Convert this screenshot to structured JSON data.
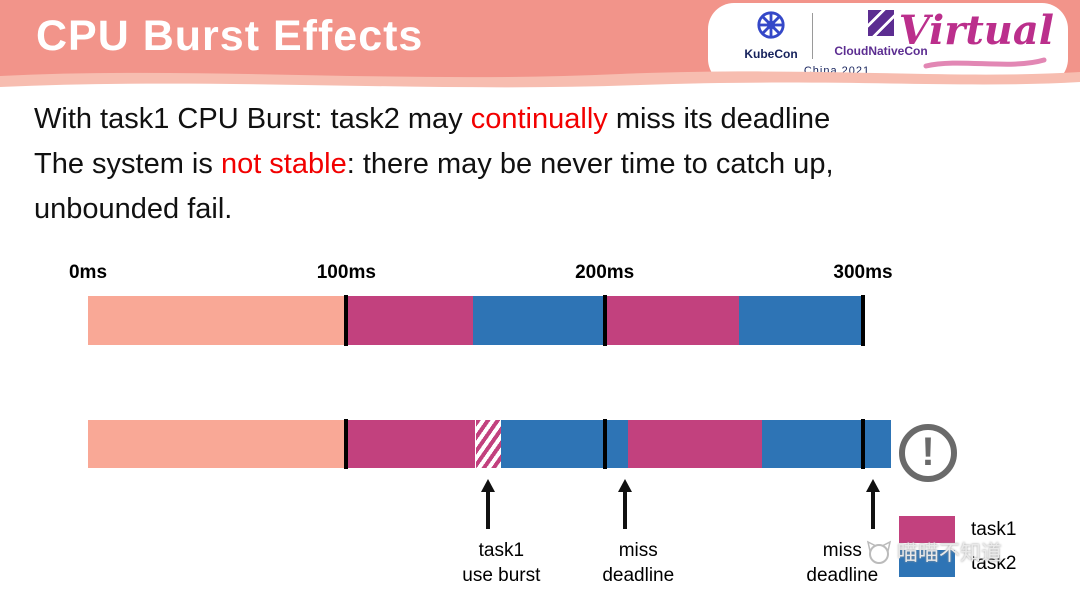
{
  "header": {
    "title": "CPU Burst Effects",
    "kubecon_label": "KubeCon",
    "cloudnativecon_label": "CloudNativeCon",
    "event_label": "China 2021",
    "virtual_label": "Virtual"
  },
  "body": {
    "line1_pre": "With task1 CPU Burst: task2 may ",
    "line1_highlight": "continually",
    "line1_post": " miss its deadline",
    "line2_pre": "The system is ",
    "line2_highlight": "not stable",
    "line2_post": ": there may be never time to catch up,",
    "line3": "unbounded fail."
  },
  "watermark": {
    "text": "喵喵不知道"
  },
  "chart_data": {
    "type": "timeline",
    "unit": "ms",
    "axis_ticks": [
      {
        "label": "0ms",
        "ms": 0
      },
      {
        "label": "100ms",
        "ms": 100
      },
      {
        "label": "200ms",
        "ms": 200
      },
      {
        "label": "300ms",
        "ms": 300
      }
    ],
    "total_ms": 312,
    "colors": {
      "idle": "#f9a896",
      "task1": "#c2417e",
      "task2": "#2e74b5",
      "tick": "#000000"
    },
    "bars": [
      {
        "name": "without-burst",
        "segments": [
          {
            "start": 0,
            "end": 100,
            "kind": "idle"
          },
          {
            "start": 100,
            "end": 149,
            "kind": "task1"
          },
          {
            "start": 149,
            "end": 200,
            "kind": "task2"
          },
          {
            "start": 200,
            "end": 252,
            "kind": "task1"
          },
          {
            "start": 252,
            "end": 300,
            "kind": "task2"
          }
        ],
        "deadline_marks_ms": [
          100,
          200,
          300
        ]
      },
      {
        "name": "with-burst",
        "segments": [
          {
            "start": 0,
            "end": 100,
            "kind": "idle"
          },
          {
            "start": 100,
            "end": 150,
            "kind": "task1"
          },
          {
            "start": 150,
            "end": 160,
            "kind": "burst"
          },
          {
            "start": 160,
            "end": 209,
            "kind": "task2"
          },
          {
            "start": 209,
            "end": 261,
            "kind": "task1"
          },
          {
            "start": 261,
            "end": 311,
            "kind": "task2"
          }
        ],
        "deadline_marks_ms": [
          100,
          200,
          300
        ]
      }
    ],
    "annotations": [
      {
        "ms": 155,
        "line1": "task1",
        "line2": "use burst",
        "label_shift_ms": 5
      },
      {
        "ms": 208,
        "line1": "miss",
        "line2": "deadline",
        "label_shift_ms": 5
      },
      {
        "ms": 304,
        "line1": "miss",
        "line2": "deadline",
        "label_shift_ms": -12
      }
    ],
    "legend": [
      {
        "label": "task1",
        "color": "#c2417e"
      },
      {
        "label": "task2",
        "color": "#2e74b5"
      }
    ],
    "warning_glyph": "!"
  }
}
